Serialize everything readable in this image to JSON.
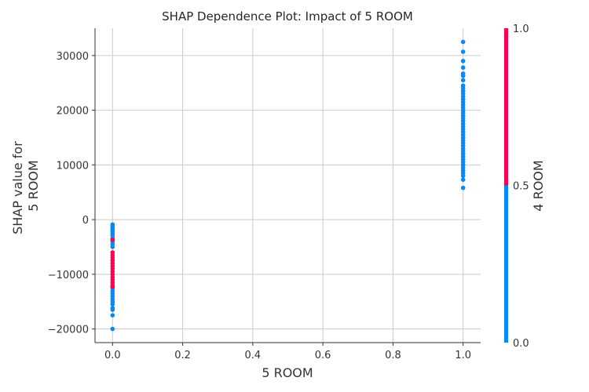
{
  "chart_data": {
    "type": "scatter",
    "title": "SHAP Dependence Plot: Impact of 5 ROOM",
    "xlabel": "5 ROOM",
    "ylabel_lines": [
      "SHAP value for",
      "5 ROOM"
    ],
    "xlim": [
      -0.05,
      1.05
    ],
    "ylim": [
      -22500,
      35000
    ],
    "x_ticks": [
      0.0,
      0.2,
      0.4,
      0.6,
      0.8,
      1.0
    ],
    "x_tick_labels": [
      "0.0",
      "0.2",
      "0.4",
      "0.6",
      "0.8",
      "1.0"
    ],
    "y_ticks": [
      -20000,
      -10000,
      0,
      10000,
      20000,
      30000
    ],
    "y_tick_labels": [
      "−20000",
      "−10000",
      "0",
      "10000",
      "20000",
      "30000"
    ],
    "grid": true,
    "colorbar": {
      "label": "4 ROOM",
      "ticks": [
        0.0,
        0.5,
        1.0
      ],
      "tick_labels": [
        "0.0",
        "0.5",
        "1.0"
      ],
      "low_color": "#008bfb",
      "high_color": "#ff0052"
    },
    "series": [
      {
        "color_value": 0,
        "points": [
          [
            0,
            -20000
          ],
          [
            0,
            -17500
          ],
          [
            0,
            -16500
          ],
          [
            0,
            -16200
          ],
          [
            0,
            -15500
          ],
          [
            0,
            -15000
          ],
          [
            0,
            -14500
          ],
          [
            0,
            -14000
          ],
          [
            0,
            -13500
          ],
          [
            0,
            -13000
          ],
          [
            0,
            -12500
          ],
          [
            0,
            -5000
          ],
          [
            0,
            -4500
          ],
          [
            0,
            -4000
          ],
          [
            0,
            -3500
          ],
          [
            0,
            -3000
          ],
          [
            0,
            -2600
          ],
          [
            0,
            -2200
          ],
          [
            0,
            -1800
          ],
          [
            0,
            -1500
          ],
          [
            0,
            -1200
          ],
          [
            0,
            -900
          ],
          [
            1,
            5800
          ],
          [
            1,
            7300
          ],
          [
            1,
            8000
          ],
          [
            1,
            8500
          ],
          [
            1,
            9000
          ],
          [
            1,
            9500
          ],
          [
            1,
            10000
          ],
          [
            1,
            10500
          ],
          [
            1,
            11000
          ],
          [
            1,
            11500
          ],
          [
            1,
            12000
          ],
          [
            1,
            12500
          ],
          [
            1,
            13000
          ],
          [
            1,
            13500
          ],
          [
            1,
            14000
          ],
          [
            1,
            14500
          ],
          [
            1,
            15000
          ],
          [
            1,
            15500
          ],
          [
            1,
            16000
          ],
          [
            1,
            16500
          ],
          [
            1,
            17000
          ],
          [
            1,
            17500
          ],
          [
            1,
            18000
          ],
          [
            1,
            18500
          ],
          [
            1,
            19000
          ],
          [
            1,
            19500
          ],
          [
            1,
            20000
          ],
          [
            1,
            20500
          ],
          [
            1,
            21000
          ],
          [
            1,
            21500
          ],
          [
            1,
            22000
          ],
          [
            1,
            22500
          ],
          [
            1,
            23000
          ],
          [
            1,
            23500
          ],
          [
            1,
            24000
          ],
          [
            1,
            24500
          ],
          [
            1,
            25500
          ],
          [
            1,
            26300
          ],
          [
            1,
            26700
          ],
          [
            1,
            27800
          ],
          [
            1,
            29000
          ],
          [
            1,
            30700
          ],
          [
            1,
            32500
          ]
        ]
      },
      {
        "color_value": 1,
        "points": [
          [
            0,
            -3700
          ],
          [
            0,
            -6000
          ],
          [
            0,
            -6500
          ],
          [
            0,
            -7000
          ],
          [
            0,
            -7500
          ],
          [
            0,
            -8000
          ],
          [
            0,
            -8500
          ],
          [
            0,
            -9000
          ],
          [
            0,
            -9500
          ],
          [
            0,
            -10000
          ],
          [
            0,
            -10500
          ],
          [
            0,
            -11000
          ],
          [
            0,
            -11500
          ],
          [
            0,
            -12000
          ],
          [
            0,
            -12300
          ]
        ]
      }
    ]
  }
}
